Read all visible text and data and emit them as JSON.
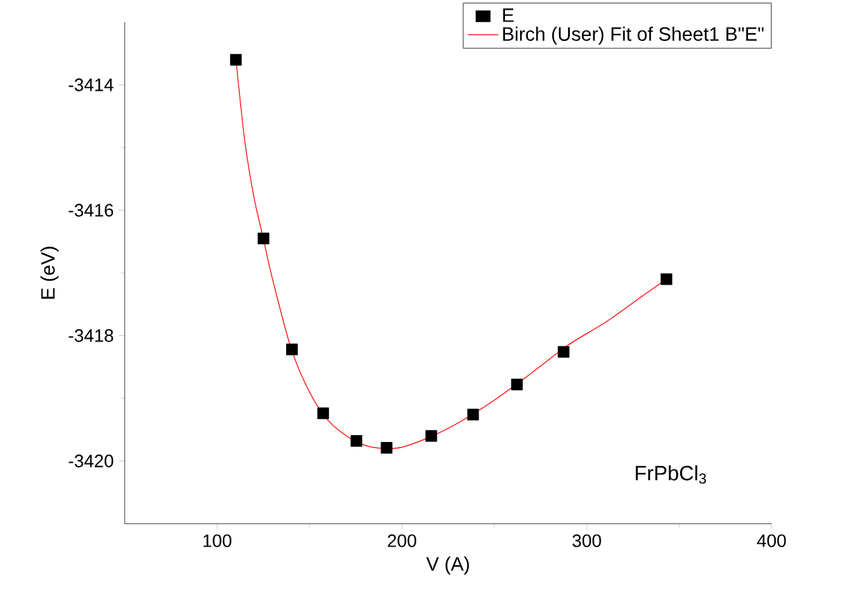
{
  "chart_data": {
    "type": "scatter",
    "xlabel": "V (A)",
    "ylabel": "E (eV)",
    "annotations": [
      "FrPbCl$_{3}$"
    ],
    "xlim": [
      50,
      400
    ],
    "xticks": [
      100,
      200,
      300,
      400
    ],
    "ylim": [
      -3421,
      -3413
    ],
    "yticks": [
      -3414,
      -3416,
      -3418,
      -3420
    ],
    "legend": "top right",
    "series": [
      {
        "name": "E",
        "marker": "square",
        "color": "#000000",
        "x": [
          110.2,
          125.1,
          140.5,
          157.4,
          175.4,
          191.7,
          215.9,
          238.5,
          262.2,
          287.5,
          343.1
        ],
        "values": [
          -3413.6,
          -3416.45,
          -3418.22,
          -3419.24,
          -3419.68,
          -3419.79,
          -3419.6,
          -3419.26,
          -3418.78,
          -3418.26,
          -3417.1
        ]
      },
      {
        "name": "Birch (User) Fit of Sheet1 B\"E\"",
        "type": "line",
        "marker": "none",
        "color": "#ff0000",
        "x": [
          110.2,
          115,
          120,
          125,
          130,
          140,
          150,
          160,
          170,
          180,
          190,
          200,
          215,
          230,
          250,
          270,
          290,
          310,
          330,
          343.1
        ],
        "values": [
          -3413.6,
          -3414.9,
          -3415.8,
          -3416.45,
          -3417.1,
          -3418.2,
          -3418.9,
          -3419.35,
          -3419.6,
          -3419.75,
          -3419.8,
          -3419.78,
          -3419.62,
          -3419.4,
          -3419.03,
          -3418.6,
          -3418.15,
          -3417.79,
          -3417.37,
          -3417.1
        ]
      }
    ]
  }
}
